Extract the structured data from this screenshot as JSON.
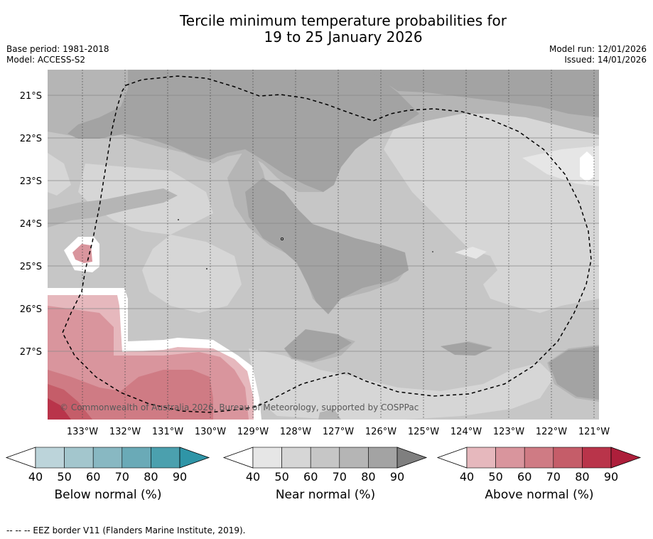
{
  "title_line1": "Tercile minimum temperature probabilities for",
  "title_line2": "19 to 25 January 2026",
  "base_period": "Base period: 1981-2018",
  "model": "Model: ACCESS-S2",
  "model_run": "Model run: 12/01/2026",
  "issued": "Issued: 14/01/2026",
  "copyright": "© Commonwealth of Australia 2026, Bureau of Meteorology, supported by COSPPac",
  "lat_labels": [
    "21°S",
    "22°S",
    "23°S",
    "24°S",
    "25°S",
    "26°S",
    "27°S"
  ],
  "lon_labels": [
    "133°W",
    "132°W",
    "131°W",
    "130°W",
    "129°W",
    "128°W",
    "127°W",
    "126°W",
    "125°W",
    "124°W",
    "123°W",
    "122°W",
    "121°W"
  ],
  "colorbars": [
    {
      "title": "Below normal (%)",
      "ticks": [
        "40",
        "50",
        "60",
        "70",
        "80",
        "90"
      ],
      "colors": [
        "#bcd4da",
        "#a3c6cd",
        "#88b8c2",
        "#6aaab7",
        "#4ba0ae"
      ],
      "extend_color": "#2f95a7"
    },
    {
      "title": "Near normal (%)",
      "ticks": [
        "40",
        "50",
        "60",
        "70",
        "80",
        "90"
      ],
      "colors": [
        "#e6e6e6",
        "#d6d6d6",
        "#c6c6c6",
        "#b5b5b5",
        "#a3a3a3"
      ],
      "extend_color": "#7f7f7f"
    },
    {
      "title": "Above normal (%)",
      "ticks": [
        "40",
        "50",
        "60",
        "70",
        "80",
        "90"
      ],
      "colors": [
        "#e6b8bd",
        "#d9959d",
        "#cf7b84",
        "#c55d69",
        "#b9344a"
      ],
      "extend_color": "#ad1f3b"
    }
  ],
  "footer": "--  --  -- EEZ border V11 (Flanders Marine Institute, 2019)."
}
